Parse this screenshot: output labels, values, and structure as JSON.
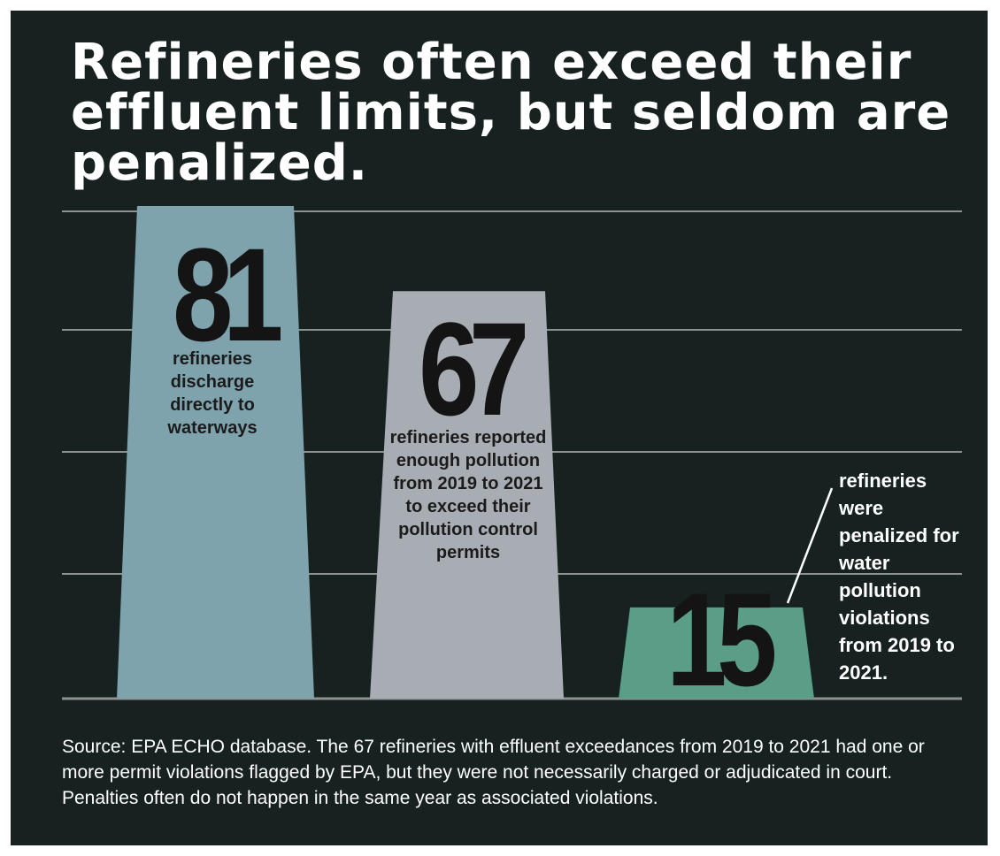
{
  "title": "Refineries often exceed their effluent limits, but seldom are penalized.",
  "colors": {
    "background": "#172220",
    "gridline": "#8d9290",
    "text": "#ffffff"
  },
  "chart_data": {
    "type": "bar",
    "categories": [
      "refineries discharge directly to waterways",
      "refineries reported enough pollution from 2019 to 2021 to exceed their pollution control permits",
      "refineries were penalized for water pollution violations from 2019 to 2021."
    ],
    "values": [
      81,
      67,
      15
    ],
    "value_labels": [
      "81",
      "67",
      "15"
    ],
    "bar_colors": [
      "#7ea3ad",
      "#a8adb4",
      "#5a9e88"
    ],
    "ylim": [
      0,
      81
    ],
    "grid": true,
    "xlabel": "",
    "ylabel": ""
  },
  "source": "Source:  EPA ECHO database. The 67 refineries with effluent exceedances from 2019 to 2021 had one or more permit violations flagged by EPA, but they were not necessarily charged or adjudicated in court.  Penalties often do not happen in the same year as associated violations."
}
